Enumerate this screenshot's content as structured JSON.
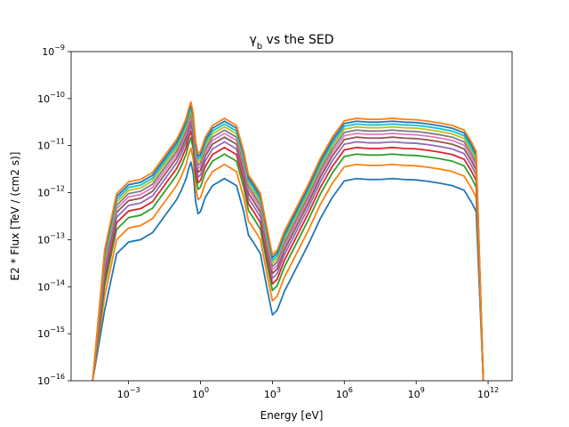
{
  "chart_data": {
    "type": "line",
    "title": "γ_b vs the SED",
    "title_main": "γ",
    "title_sub": "b",
    "title_rest": " vs the SED",
    "xlabel": "Energy [eV]",
    "ylabel": "E2 * Flux [TeV / (cm2 s)]",
    "x_scale": "log",
    "y_scale": "log",
    "xlim": [
      4e-06,
      10000000000000.0
    ],
    "ylim": [
      1e-16,
      1e-09
    ],
    "x_ticks": [
      {
        "value": 0.001,
        "base": "10",
        "exp": "−3"
      },
      {
        "value": 1,
        "base": "10",
        "exp": "0"
      },
      {
        "value": 1000,
        "base": "10",
        "exp": "3"
      },
      {
        "value": 1000000,
        "base": "10",
        "exp": "6"
      },
      {
        "value": 1000000000,
        "base": "10",
        "exp": "9"
      },
      {
        "value": 1000000000000,
        "base": "10",
        "exp": "12"
      }
    ],
    "y_ticks": [
      {
        "value": 1e-16,
        "base": "10",
        "exp": "−16"
      },
      {
        "value": 1e-15,
        "base": "10",
        "exp": "−15"
      },
      {
        "value": 1e-14,
        "base": "10",
        "exp": "−14"
      },
      {
        "value": 1e-13,
        "base": "10",
        "exp": "−13"
      },
      {
        "value": 1e-12,
        "base": "10",
        "exp": "−12"
      },
      {
        "value": 1e-11,
        "base": "10",
        "exp": "−11"
      },
      {
        "value": 1e-10,
        "base": "10",
        "exp": "−10"
      },
      {
        "value": 1e-09,
        "base": "10",
        "exp": "−9"
      }
    ],
    "grid": false,
    "legend": "none",
    "colors": [
      "#1f77b4",
      "#ff7f0e",
      "#2ca02c",
      "#d62728",
      "#9467bd",
      "#8c564b",
      "#e377c2",
      "#7f7f7f",
      "#bcbd22",
      "#17becf",
      "#1f77b4",
      "#ff7f0e"
    ],
    "base_curve": {
      "log_x": [
        -4.5,
        -4.0,
        -3.5,
        -3.0,
        -2.5,
        -2.0,
        -1.5,
        -1.0,
        -0.8,
        -0.6,
        -0.5,
        -0.4,
        -0.3,
        -0.2,
        -0.1,
        0.0,
        0.2,
        0.5,
        1.0,
        1.5,
        1.8,
        2.0,
        2.2,
        2.5,
        2.8,
        3.0,
        3.2,
        3.5,
        4.0,
        4.5,
        5.0,
        5.5,
        6.0,
        6.5,
        7.0,
        7.5,
        8.0,
        8.5,
        9.0,
        9.5,
        10.0,
        10.5,
        11.0,
        11.3,
        11.5,
        11.8,
        11.9
      ],
      "log_y": [
        -16.0,
        -14.5,
        -13.3,
        -13.05,
        -13.0,
        -12.85,
        -12.5,
        -12.15,
        -11.95,
        -11.7,
        -11.5,
        -11.35,
        -11.6,
        -12.2,
        -12.45,
        -12.4,
        -12.1,
        -11.85,
        -11.7,
        -11.85,
        -12.4,
        -12.9,
        -13.05,
        -13.3,
        -14.1,
        -14.6,
        -14.5,
        -14.1,
        -13.6,
        -13.1,
        -12.55,
        -12.1,
        -11.75,
        -11.7,
        -11.72,
        -11.72,
        -11.7,
        -11.72,
        -11.73,
        -11.76,
        -11.8,
        -11.85,
        -11.95,
        -12.2,
        -12.4,
        -16.0,
        -16.5
      ]
    },
    "series_offsets": [
      0.0,
      0.3,
      0.52,
      0.66,
      0.78,
      0.88,
      0.96,
      1.03,
      1.1,
      1.16,
      1.22,
      1.28
    ]
  }
}
